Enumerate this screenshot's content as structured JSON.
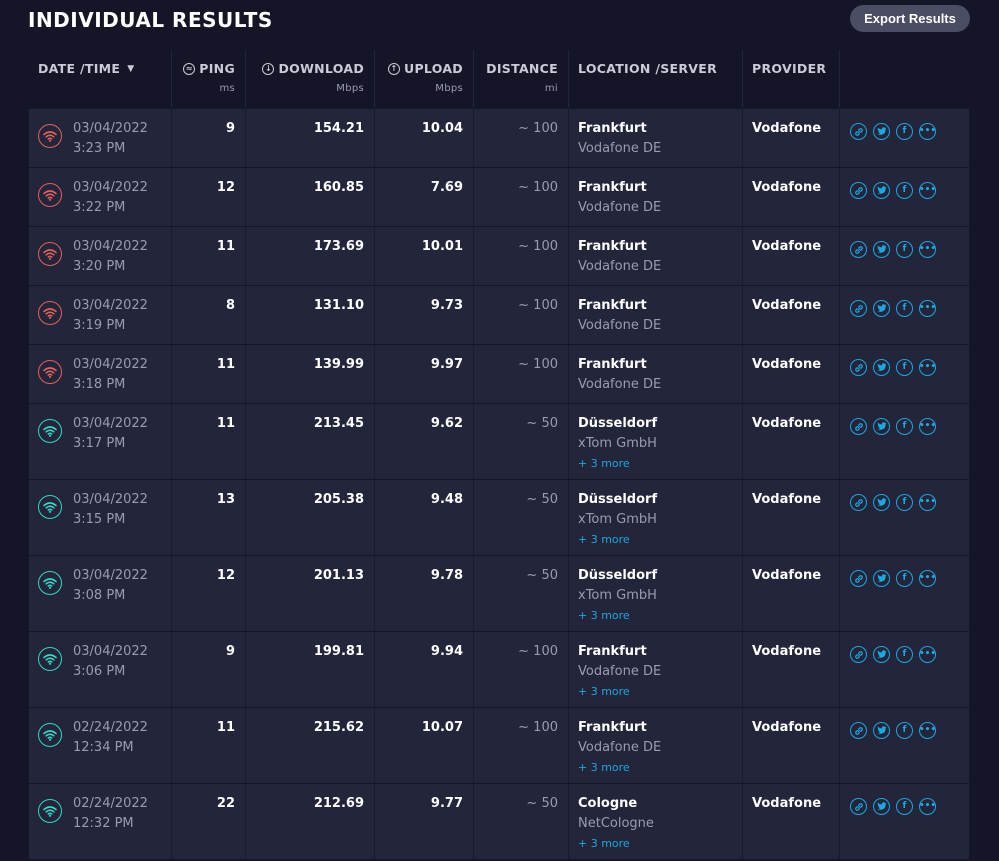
{
  "header": {
    "title": "INDIVIDUAL RESULTS",
    "export_label": "Export Results"
  },
  "columns": {
    "date": "DATE /TIME",
    "ping": "PING",
    "ping_unit": "ms",
    "download": "DOWNLOAD",
    "download_unit": "Mbps",
    "upload": "UPLOAD",
    "upload_unit": "Mbps",
    "distance": "DISTANCE",
    "distance_unit": "mi",
    "location": "LOCATION /SERVER",
    "provider": "PROVIDER"
  },
  "colors": {
    "status_poor": "#e0625c",
    "status_good": "#34d7c7",
    "accent": "#1ea6e0",
    "row_bg": "#23253a",
    "page_bg": "#141526"
  },
  "icons": {
    "wifi": "wifi-icon",
    "ping": "ping-icon",
    "download": "download-icon",
    "upload": "upload-icon",
    "sort": "chevron-down-icon",
    "link": "link-icon",
    "twitter": "twitter-icon",
    "facebook": "facebook-icon",
    "more": "more-icon"
  },
  "rows": [
    {
      "status": "red",
      "date": "03/04/2022",
      "time": "3:23 PM",
      "ping": "9",
      "download": "154.21",
      "upload": "10.04",
      "distance": "~ 100",
      "city": "Frankfurt",
      "server": "Vodafone DE",
      "more": "",
      "provider": "Vodafone"
    },
    {
      "status": "red",
      "date": "03/04/2022",
      "time": "3:22 PM",
      "ping": "12",
      "download": "160.85",
      "upload": "7.69",
      "distance": "~ 100",
      "city": "Frankfurt",
      "server": "Vodafone DE",
      "more": "",
      "provider": "Vodafone"
    },
    {
      "status": "red",
      "date": "03/04/2022",
      "time": "3:20 PM",
      "ping": "11",
      "download": "173.69",
      "upload": "10.01",
      "distance": "~ 100",
      "city": "Frankfurt",
      "server": "Vodafone DE",
      "more": "",
      "provider": "Vodafone"
    },
    {
      "status": "red",
      "date": "03/04/2022",
      "time": "3:19 PM",
      "ping": "8",
      "download": "131.10",
      "upload": "9.73",
      "distance": "~ 100",
      "city": "Frankfurt",
      "server": "Vodafone DE",
      "more": "",
      "provider": "Vodafone"
    },
    {
      "status": "red",
      "date": "03/04/2022",
      "time": "3:18 PM",
      "ping": "11",
      "download": "139.99",
      "upload": "9.97",
      "distance": "~ 100",
      "city": "Frankfurt",
      "server": "Vodafone DE",
      "more": "",
      "provider": "Vodafone"
    },
    {
      "status": "teal",
      "date": "03/04/2022",
      "time": "3:17 PM",
      "ping": "11",
      "download": "213.45",
      "upload": "9.62",
      "distance": "~ 50",
      "city": "Düsseldorf",
      "server": "xTom GmbH",
      "more": "+ 3 more",
      "provider": "Vodafone"
    },
    {
      "status": "teal",
      "date": "03/04/2022",
      "time": "3:15 PM",
      "ping": "13",
      "download": "205.38",
      "upload": "9.48",
      "distance": "~ 50",
      "city": "Düsseldorf",
      "server": "xTom GmbH",
      "more": "+ 3 more",
      "provider": "Vodafone"
    },
    {
      "status": "teal",
      "date": "03/04/2022",
      "time": "3:08 PM",
      "ping": "12",
      "download": "201.13",
      "upload": "9.78",
      "distance": "~ 50",
      "city": "Düsseldorf",
      "server": "xTom GmbH",
      "more": "+ 3 more",
      "provider": "Vodafone"
    },
    {
      "status": "teal",
      "date": "03/04/2022",
      "time": "3:06 PM",
      "ping": "9",
      "download": "199.81",
      "upload": "9.94",
      "distance": "~ 100",
      "city": "Frankfurt",
      "server": "Vodafone DE",
      "more": "+ 3 more",
      "provider": "Vodafone"
    },
    {
      "status": "teal",
      "date": "02/24/2022",
      "time": "12:34 PM",
      "ping": "11",
      "download": "215.62",
      "upload": "10.07",
      "distance": "~ 100",
      "city": "Frankfurt",
      "server": "Vodafone DE",
      "more": "+ 3 more",
      "provider": "Vodafone"
    },
    {
      "status": "teal",
      "date": "02/24/2022",
      "time": "12:32 PM",
      "ping": "22",
      "download": "212.69",
      "upload": "9.77",
      "distance": "~ 50",
      "city": "Cologne",
      "server": "NetCologne",
      "more": "+ 3 more",
      "provider": "Vodafone"
    }
  ]
}
